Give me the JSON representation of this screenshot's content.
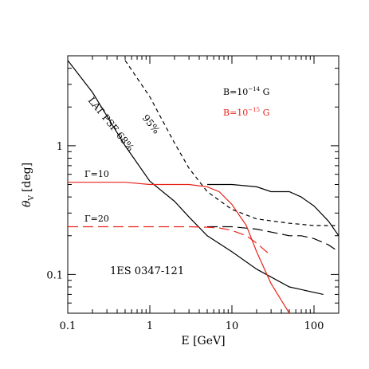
{
  "chart_data": {
    "type": "line",
    "source_label": "1ES 0347-121",
    "xlabel": "E [GeV]",
    "ylabel": {
      "symbol": "θ",
      "subscript": "V",
      "unit": "[deg]"
    },
    "x_scale": "log",
    "y_scale": "log",
    "xlim": [
      0.1,
      200
    ],
    "ylim": [
      0.05,
      5.0
    ],
    "x_ticks": [
      {
        "value": 0.1,
        "label": "0.1"
      },
      {
        "value": 1,
        "label": "1"
      },
      {
        "value": 10,
        "label": "10"
      },
      {
        "value": 100,
        "label": "100"
      }
    ],
    "y_ticks": [
      {
        "value": 0.1,
        "label": "0.1"
      },
      {
        "value": 1,
        "label": "1"
      }
    ],
    "legend": [
      {
        "label_main": "B=10",
        "label_exp": "−14",
        "label_unit": " G",
        "color": "#000000"
      },
      {
        "label_main": "B=10",
        "label_exp": "−15",
        "label_unit": " G",
        "color": "#e8231a"
      }
    ],
    "annotations": {
      "psf68": "LAT PSF 68%",
      "psf95": "95%",
      "gamma10": "Γ=10",
      "gamma20": "Γ=20"
    },
    "series": [
      {
        "color": "#000000",
        "dash": "solid",
        "x": [
          0.1,
          0.2,
          0.5,
          1,
          2,
          3,
          5,
          10,
          20,
          50,
          130
        ],
        "y": [
          4.6,
          2.6,
          1.0,
          0.53,
          0.37,
          0.28,
          0.2,
          0.15,
          0.11,
          0.08,
          0.07
        ]
      },
      {
        "color": "#000000",
        "dash": "short",
        "x": [
          0.5,
          1,
          2,
          3,
          5,
          10,
          20,
          50,
          100,
          200
        ],
        "y": [
          4.6,
          2.4,
          1.05,
          0.67,
          0.44,
          0.32,
          0.27,
          0.25,
          0.24,
          0.24
        ]
      },
      {
        "color": "#000000",
        "dash": "solid",
        "x": [
          5,
          10,
          20,
          30,
          50,
          70,
          100,
          150,
          200
        ],
        "y": [
          0.5,
          0.5,
          0.48,
          0.44,
          0.44,
          0.4,
          0.34,
          0.26,
          0.2
        ]
      },
      {
        "color": "#000000",
        "dash": "long",
        "x": [
          5,
          10,
          20,
          50,
          70,
          100,
          150,
          200
        ],
        "y": [
          0.235,
          0.235,
          0.225,
          0.2,
          0.2,
          0.19,
          0.17,
          0.15
        ]
      },
      {
        "color": "#e8231a",
        "dash": "solid",
        "x": [
          0.1,
          0.5,
          1,
          2,
          3,
          5,
          7,
          10,
          15,
          20,
          30,
          40,
          50
        ],
        "y": [
          0.52,
          0.52,
          0.5,
          0.5,
          0.5,
          0.48,
          0.44,
          0.35,
          0.24,
          0.15,
          0.085,
          0.063,
          0.05
        ]
      },
      {
        "color": "#e8231a",
        "dash": "long",
        "x": [
          0.1,
          3,
          5,
          7,
          10,
          15,
          20,
          30
        ],
        "y": [
          0.235,
          0.235,
          0.233,
          0.23,
          0.22,
          0.2,
          0.175,
          0.14
        ]
      }
    ]
  }
}
